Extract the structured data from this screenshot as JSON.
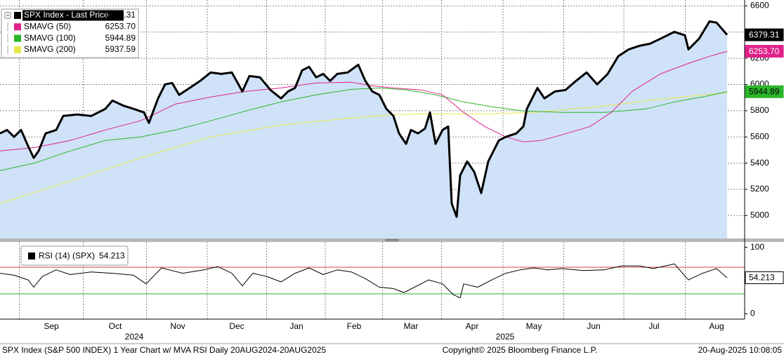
{
  "chart_data": [
    {
      "type": "line",
      "xlim": [
        0,
        265
      ],
      "ylim": [
        4825,
        6645
      ],
      "yticks": [
        5000,
        5200,
        5400,
        5600,
        5800,
        6000,
        6200,
        6400,
        6600
      ],
      "ygrid": true,
      "xgrid": true,
      "legend": "upper left",
      "series": [
        {
          "name": "SPX Index - Last Price",
          "color": "#000000",
          "area_color": "#cfe2f7",
          "width": 3,
          "tag": true,
          "tag_text": "#ffffff",
          "legend_highlight": true,
          "last": {
            "value": 6379.31,
            "label": "6379.31"
          },
          "x": [
            0,
            2.5,
            5,
            7.5,
            10,
            12,
            13.75,
            16.25,
            20,
            22.5,
            27.5,
            32.5,
            37.5,
            40,
            43.75,
            47.5,
            51.25,
            53,
            56.25,
            58.75,
            61.25,
            63.75,
            67.5,
            71.25,
            75,
            78.75,
            82.5,
            86.25,
            88.75,
            92.5,
            96.25,
            100,
            102.5,
            105,
            107.5,
            110,
            112.5,
            115,
            117.5,
            120,
            123.75,
            127.5,
            130,
            132.5,
            135,
            137.5,
            140,
            142,
            144.5,
            146.25,
            148.75,
            151.25,
            153,
            155,
            157.5,
            159.5,
            160.75,
            162.5,
            163.75,
            166.25,
            168.75,
            171.25,
            173.75,
            177.5,
            180,
            183.75,
            186.25,
            187.5,
            191.25,
            193.75,
            197.5,
            201.25,
            205,
            208.75,
            212.5,
            216.25,
            220,
            223.75,
            227.5,
            231.25,
            235,
            240,
            243.75,
            245,
            248.75,
            252.5,
            255,
            258.75
          ],
          "values": [
            5627,
            5653,
            5600,
            5653,
            5530,
            5440,
            5493,
            5627,
            5653,
            5760,
            5771,
            5760,
            5814,
            5878,
            5840,
            5814,
            5787,
            5707,
            5894,
            6001,
            6012,
            5921,
            5974,
            6028,
            6092,
            6081,
            6092,
            5947,
            6065,
            6055,
            5958,
            5894,
            5947,
            5974,
            6108,
            6135,
            6055,
            6081,
            6028,
            6081,
            6092,
            6151,
            6028,
            5947,
            5921,
            5814,
            5760,
            5627,
            5547,
            5653,
            5627,
            5664,
            5787,
            5547,
            5653,
            5680,
            5092,
            4990,
            5306,
            5413,
            5333,
            5172,
            5413,
            5573,
            5600,
            5627,
            5680,
            5814,
            5974,
            5894,
            5947,
            5958,
            6028,
            6092,
            6001,
            6081,
            6215,
            6268,
            6295,
            6311,
            6349,
            6402,
            6375,
            6268,
            6349,
            6482,
            6472,
            6379.31
          ]
        },
        {
          "name": "SMAVG (50)",
          "color": "#e0218a",
          "width": 1,
          "tag": true,
          "tag_text": "#ffffff",
          "last": {
            "value": 6253.7,
            "label": "6253.70"
          },
          "x": [
            0,
            12.5,
            25,
            37.5,
            50,
            62.5,
            75,
            87.5,
            100,
            112.5,
            125,
            132.5,
            140,
            150,
            157.5,
            165,
            172.5,
            180,
            186.25,
            192.5,
            200,
            210,
            217.5,
            225,
            235,
            245,
            252.5,
            258.75
          ],
          "values": [
            5493,
            5520,
            5573,
            5653,
            5723,
            5851,
            5905,
            5948,
            5974,
            6012,
            6017,
            5990,
            5974,
            5958,
            5921,
            5787,
            5680,
            5600,
            5562,
            5573,
            5616,
            5680,
            5787,
            5948,
            6081,
            6161,
            6215,
            6253.7
          ]
        },
        {
          "name": "SMAVG (100)",
          "color": "#2bb52b",
          "width": 1,
          "tag": true,
          "tag_text": "#000000",
          "last": {
            "value": 5944.89,
            "label": "5944.89"
          },
          "x": [
            0,
            12.5,
            25,
            37.5,
            50,
            62.5,
            75,
            87.5,
            100,
            112.5,
            125,
            135,
            145,
            155,
            165,
            175,
            186.25,
            200,
            215,
            230,
            240,
            250,
            258.75
          ],
          "values": [
            5343,
            5402,
            5493,
            5573,
            5600,
            5653,
            5723,
            5798,
            5867,
            5921,
            5963,
            5974,
            5958,
            5921,
            5867,
            5830,
            5798,
            5787,
            5787,
            5814,
            5867,
            5905,
            5944.89
          ]
        },
        {
          "name": "SMAVG (200)",
          "color": "#e8e84a",
          "width": 1,
          "tag": false,
          "last": {
            "value": 5937.59,
            "label": "5937.59"
          },
          "x": [
            0,
            25,
            50,
            75,
            100,
            125,
            140,
            155,
            175,
            190,
            212.5,
            237.5,
            258.75
          ],
          "values": [
            5092,
            5263,
            5440,
            5600,
            5691,
            5744,
            5771,
            5776,
            5776,
            5787,
            5830,
            5894,
            5937.59
          ]
        }
      ]
    },
    {
      "type": "line",
      "xlim": [
        0,
        265
      ],
      "ylim": [
        -8,
        108
      ],
      "yticks": [
        0,
        100
      ],
      "ygrid": false,
      "xgrid": true,
      "legend": "upper left",
      "levels": [
        {
          "value": 70,
          "color": "#d04040"
        },
        {
          "value": 30,
          "color": "#2bb02b"
        }
      ],
      "xticks": [
        {
          "value": 18.25,
          "label": "Sep"
        },
        {
          "value": 41,
          "label": "Oct"
        },
        {
          "value": 63.25,
          "label": "Nov"
        },
        {
          "value": 84.25,
          "label": "Dec"
        },
        {
          "value": 105.5,
          "label": "Jan"
        },
        {
          "value": 126,
          "label": "Feb"
        },
        {
          "value": 146.25,
          "label": "Mar"
        },
        {
          "value": 168,
          "label": "Apr"
        },
        {
          "value": 190,
          "label": "May"
        },
        {
          "value": 211.25,
          "label": "Jun"
        },
        {
          "value": 232.75,
          "label": "Jul"
        },
        {
          "value": 255,
          "label": "Aug"
        }
      ],
      "annotations": [
        {
          "text": "2024",
          "x": 47.75
        },
        {
          "text": "2025",
          "x": 179.75
        }
      ],
      "series": [
        {
          "name": "RSI (14) (SPX)",
          "color": "#000000",
          "width": 1,
          "tag": true,
          "tag_text": "#000000",
          "tag_fill": "#ffffff",
          "last": {
            "value": 54.213,
            "label": "54.213"
          },
          "x": [
            0,
            5,
            10,
            12,
            15,
            20,
            25,
            32.5,
            40,
            47.5,
            52,
            57.5,
            65,
            72.5,
            77.5,
            82.5,
            86.25,
            90,
            95,
            100,
            105,
            110,
            115,
            120,
            125,
            130,
            135,
            140,
            143.75,
            147.5,
            152.5,
            157.5,
            161.25,
            163.75,
            165,
            170,
            175,
            180,
            185,
            190,
            195,
            200,
            207.5,
            215,
            221.25,
            227.5,
            232.5,
            240,
            245,
            250,
            255,
            258.75
          ],
          "values": [
            61,
            58,
            51,
            40,
            56,
            66,
            59,
            63,
            61,
            58,
            45,
            69,
            61,
            66,
            71,
            61,
            42,
            61,
            56,
            48,
            61,
            69,
            59,
            66,
            63,
            53,
            40,
            38,
            32,
            40,
            51,
            45,
            29,
            24,
            45,
            40,
            51,
            61,
            66,
            69,
            66,
            68,
            65,
            66,
            72,
            72,
            68,
            75,
            51,
            61,
            68,
            54.213
          ]
        }
      ]
    }
  ],
  "footer": {
    "left": "SPX Index (S&P 500 INDEX) 1 Year Chart w/ MVA RSI  Daily 20AUG2024-20AUG2025",
    "center": "Copyright© 2025 Bloomberg Finance L.P.",
    "right": "20-Aug-2025 10:08:05"
  }
}
